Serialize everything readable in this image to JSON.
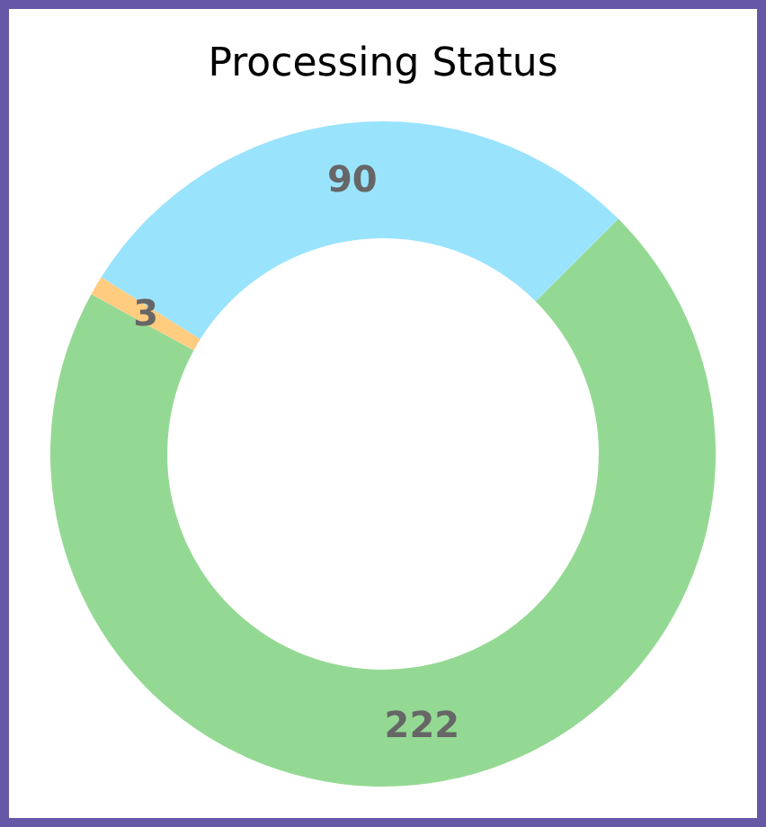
{
  "chart_data": {
    "type": "donut",
    "title": "Processing Status",
    "categories": [
      null,
      null,
      null
    ],
    "values": [
      222,
      3,
      90
    ],
    "colors": [
      "#94d993",
      "#ffcc80",
      "#99e3fd"
    ],
    "data_labels": true
  }
}
